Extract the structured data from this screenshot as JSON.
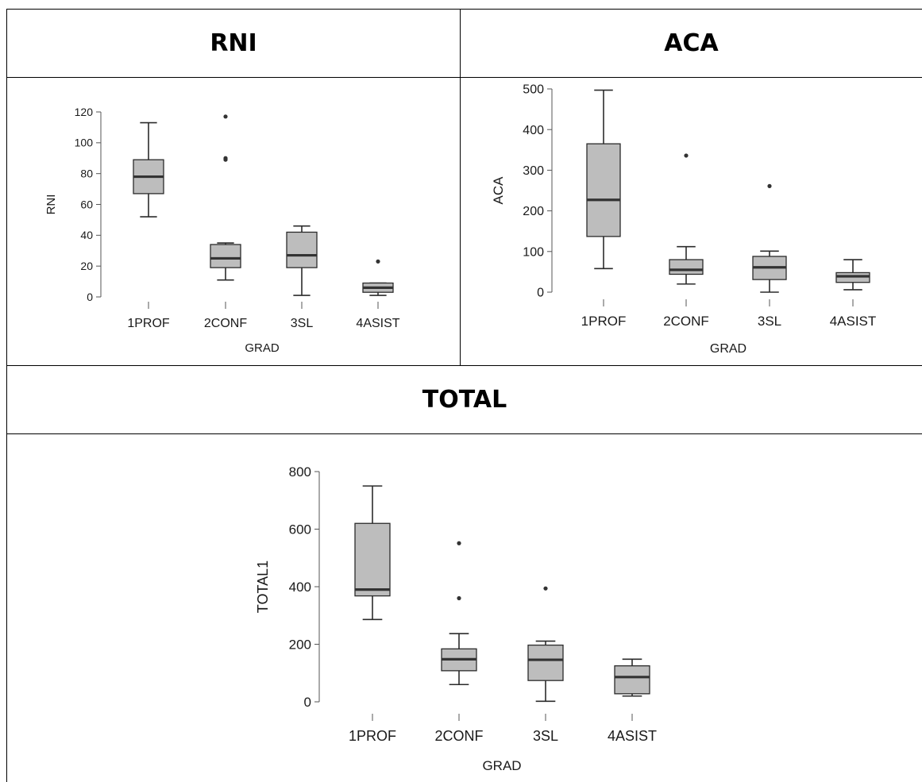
{
  "sections": {
    "rni_title": "RNI",
    "aca_title": "ACA",
    "total_title": "TOTAL"
  },
  "colors": {
    "box_fill": "#bdbdbd",
    "stroke": "#2b2b2b"
  },
  "chart_data": [
    {
      "id": "rni",
      "type": "box",
      "xlabel": "GRAD",
      "ylabel": "RNI",
      "ylim": [
        0,
        120
      ],
      "yticks": [
        0,
        20,
        40,
        60,
        80,
        100,
        120
      ],
      "categories": [
        "1PROF",
        "2CONF",
        "3SL",
        "4ASIST"
      ],
      "boxes": [
        {
          "min": 52,
          "q1": 67,
          "median": 78,
          "q3": 89,
          "max": 113,
          "outliers": []
        },
        {
          "min": 11,
          "q1": 19,
          "median": 25,
          "q3": 34,
          "max": 35,
          "outliers": [
            89,
            90,
            117
          ]
        },
        {
          "min": 1,
          "q1": 19,
          "median": 27,
          "q3": 42,
          "max": 46,
          "outliers": []
        },
        {
          "min": 1,
          "q1": 3,
          "median": 6,
          "q3": 9,
          "max": 9,
          "outliers": [
            23
          ]
        }
      ]
    },
    {
      "id": "aca",
      "type": "box",
      "xlabel": "GRAD",
      "ylabel": "ACA",
      "ylim": [
        0,
        500
      ],
      "yticks": [
        0,
        100,
        200,
        300,
        400,
        500
      ],
      "categories": [
        "1PROF",
        "2CONF",
        "3SL",
        "4ASIST"
      ],
      "boxes": [
        {
          "min": 58,
          "q1": 137,
          "median": 227,
          "q3": 365,
          "max": 497,
          "outliers": []
        },
        {
          "min": 20,
          "q1": 44,
          "median": 55,
          "q3": 80,
          "max": 112,
          "outliers": [
            336
          ]
        },
        {
          "min": 0,
          "q1": 31,
          "median": 61,
          "q3": 88,
          "max": 101,
          "outliers": [
            261
          ]
        },
        {
          "min": 6,
          "q1": 24,
          "median": 39,
          "q3": 48,
          "max": 80,
          "outliers": []
        }
      ]
    },
    {
      "id": "total",
      "type": "box",
      "xlabel": "GRAD",
      "ylabel": "TOTAL1",
      "ylim": [
        0,
        800
      ],
      "yticks": [
        0,
        200,
        400,
        600,
        800
      ],
      "categories": [
        "1PROF",
        "2CONF",
        "3SL",
        "4ASIST"
      ],
      "boxes": [
        {
          "min": 286,
          "q1": 368,
          "median": 390,
          "q3": 620,
          "max": 750,
          "outliers": []
        },
        {
          "min": 60,
          "q1": 108,
          "median": 148,
          "q3": 184,
          "max": 237,
          "outliers": [
            360,
            551
          ]
        },
        {
          "min": 2,
          "q1": 74,
          "median": 146,
          "q3": 197,
          "max": 211,
          "outliers": [
            394
          ]
        },
        {
          "min": 20,
          "q1": 28,
          "median": 86,
          "q3": 125,
          "max": 148,
          "outliers": []
        }
      ]
    }
  ]
}
